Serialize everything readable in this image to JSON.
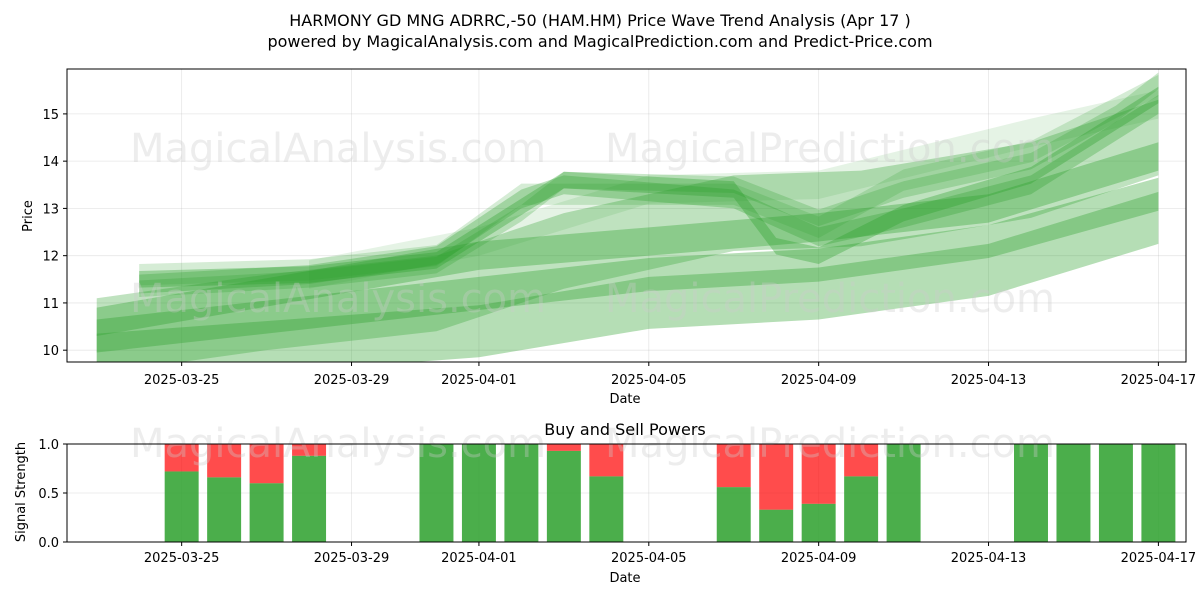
{
  "chart_title_line1": "HARMONY GD MNG ADRRC,-50 (HAM.HM) Price Wave Trend Analysis (Apr 17 )",
  "chart_title_line2": "powered by MagicalAnalysis.com and MagicalPrediction.com and Predict-Price.com",
  "watermarks": [
    "MagicalAnalysis.com",
    "MagicalPrediction.com"
  ],
  "colors": {
    "band": "#2ca02c",
    "buy": "#2ca02c",
    "sell": "#ff0000"
  },
  "chart_data": [
    {
      "type": "area",
      "title": "",
      "xlabel": "Date",
      "ylabel": "Price",
      "x_start": "2025-03-23",
      "x_ticks": [
        "2025-03-25",
        "2025-03-29",
        "2025-04-01",
        "2025-04-05",
        "2025-04-09",
        "2025-04-13",
        "2025-04-17"
      ],
      "y_ticks": [
        10,
        11,
        12,
        13,
        14,
        15
      ],
      "ylim": [
        9.75,
        15.95
      ],
      "grid": true,
      "bands": [
        {
          "x": [
            "2025-03-23",
            "2025-04-01",
            "2025-04-05",
            "2025-04-09",
            "2025-04-13",
            "2025-04-17"
          ],
          "y": [
            9.8,
            10.4,
            11.0,
            11.2,
            11.7,
            12.8
          ],
          "width": 1.1,
          "alpha": 0.35
        },
        {
          "x": [
            "2025-03-23",
            "2025-04-01",
            "2025-04-05",
            "2025-04-09",
            "2025-04-13",
            "2025-04-17"
          ],
          "y": [
            10.3,
            11.2,
            11.6,
            11.8,
            12.3,
            13.3
          ],
          "width": 0.7,
          "alpha": 0.35
        },
        {
          "x": [
            "2025-03-23",
            "2025-04-01",
            "2025-04-05",
            "2025-04-09",
            "2025-04-13",
            "2025-04-17"
          ],
          "y": [
            10.6,
            12.0,
            12.3,
            12.6,
            13.0,
            14.1
          ],
          "width": 0.6,
          "alpha": 0.35
        },
        {
          "x": [
            "2025-03-23",
            "2025-03-27",
            "2025-03-31",
            "2025-04-03",
            "2025-04-07",
            "2025-04-10",
            "2025-04-14",
            "2025-04-17"
          ],
          "y": [
            10.3,
            10.8,
            11.2,
            12.1,
            12.9,
            13.0,
            13.6,
            14.5
          ],
          "width": 1.6,
          "alpha": 0.3
        },
        {
          "x": [
            "2025-03-24",
            "2025-03-28",
            "2025-03-31",
            "2025-04-03",
            "2025-04-07",
            "2025-04-08",
            "2025-04-09",
            "2025-04-11",
            "2025-04-14",
            "2025-04-17"
          ],
          "y": [
            11.5,
            11.6,
            11.9,
            13.6,
            13.4,
            12.2,
            12.0,
            12.9,
            13.7,
            15.4
          ],
          "width": 0.35,
          "alpha": 0.35
        },
        {
          "x": [
            "2025-03-24",
            "2025-03-28",
            "2025-03-31",
            "2025-04-02",
            "2025-04-03",
            "2025-04-07",
            "2025-04-09",
            "2025-04-11",
            "2025-04-14",
            "2025-04-17"
          ],
          "y": [
            11.4,
            11.6,
            12.0,
            13.2,
            13.5,
            13.2,
            12.4,
            12.8,
            13.5,
            15.2
          ],
          "width": 0.4,
          "alpha": 0.3
        },
        {
          "x": [
            "2025-03-24",
            "2025-03-28",
            "2025-03-31",
            "2025-04-02",
            "2025-04-04",
            "2025-04-07",
            "2025-04-09",
            "2025-04-11",
            "2025-04-14",
            "2025-04-17"
          ],
          "y": [
            11.6,
            11.7,
            12.0,
            13.3,
            13.3,
            13.3,
            12.6,
            13.6,
            14.2,
            15.6
          ],
          "width": 0.45,
          "alpha": 0.2
        },
        {
          "x": [
            "2025-03-24",
            "2025-03-28",
            "2025-03-31",
            "2025-04-02",
            "2025-04-03",
            "2025-04-07",
            "2025-04-09",
            "2025-04-11",
            "2025-04-14",
            "2025-04-16",
            "2025-04-17"
          ],
          "y": [
            11.3,
            11.5,
            11.8,
            12.9,
            13.6,
            13.5,
            12.8,
            13.4,
            14.0,
            15.0,
            15.7
          ],
          "width": 0.35,
          "alpha": 0.25
        },
        {
          "x": [
            "2025-03-28",
            "2025-04-01",
            "2025-04-05",
            "2025-04-09",
            "2025-04-14",
            "2025-04-17"
          ],
          "y": [
            11.6,
            12.3,
            13.4,
            13.5,
            14.6,
            15.2
          ],
          "width": 0.6,
          "alpha": 0.12
        }
      ]
    },
    {
      "type": "bar",
      "title": "Buy and Sell Powers",
      "xlabel": "Date",
      "ylabel": "Signal Strength",
      "ylim": [
        0,
        1
      ],
      "y_ticks": [
        "0.0",
        "0.5",
        "1.0"
      ],
      "x_ticks": [
        "2025-03-25",
        "2025-03-29",
        "2025-04-01",
        "2025-04-05",
        "2025-04-09",
        "2025-04-13",
        "2025-04-17"
      ],
      "series": [
        {
          "name": "buy",
          "values": [
            0.72,
            0.66,
            0.6,
            0.88,
            1.0,
            1.0,
            1.0,
            0.93,
            0.67,
            0.56,
            0.33,
            0.39,
            0.67,
            1.0,
            1.0,
            1.0,
            1.0,
            1.0
          ]
        },
        {
          "name": "sell",
          "values": [
            0.28,
            0.34,
            0.4,
            0.12,
            0.0,
            0.0,
            0.0,
            0.07,
            0.33,
            0.44,
            0.67,
            0.61,
            0.33,
            0.0,
            0.0,
            0.0,
            0.0,
            0.0
          ]
        }
      ],
      "dates": [
        "2025-03-25",
        "2025-03-26",
        "2025-03-27",
        "2025-03-28",
        "2025-03-31",
        "2025-04-01",
        "2025-04-02",
        "2025-04-03",
        "2025-04-04",
        "2025-04-07",
        "2025-04-08",
        "2025-04-09",
        "2025-04-10",
        "2025-04-11",
        "2025-04-14",
        "2025-04-15",
        "2025-04-16",
        "2025-04-17"
      ]
    }
  ]
}
